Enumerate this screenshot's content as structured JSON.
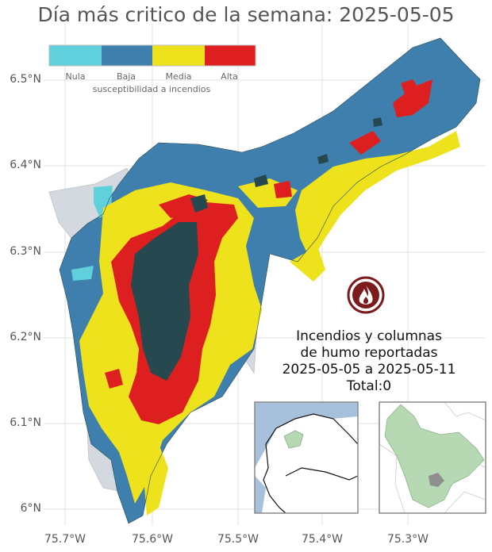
{
  "title": "Día más critico de la semana: 2025-05-05",
  "axes": {
    "y_ticks": [
      "6.5°N",
      "6.4°N",
      "6.3°N",
      "6.2°N",
      "6.1°N",
      "6°N"
    ],
    "x_ticks": [
      "75.7°W",
      "75.6°W",
      "75.5°W",
      "75.4°W",
      "75.3°W"
    ]
  },
  "legend": {
    "title": "susceptibilidad a incendios",
    "items": [
      {
        "label": "Nula",
        "color": "#5fd0dc"
      },
      {
        "label": "Baja",
        "color": "#3e7fad"
      },
      {
        "label": "Media",
        "color": "#eee21c"
      },
      {
        "label": "Alta",
        "color": "#de1f1f"
      }
    ]
  },
  "fire_report": {
    "line1": "Incendios y columnas",
    "line2": "de humo reportadas",
    "line3": "2025-05-05 a 2025-05-11",
    "line4": "Total:0"
  },
  "icon": "fire-icon"
}
